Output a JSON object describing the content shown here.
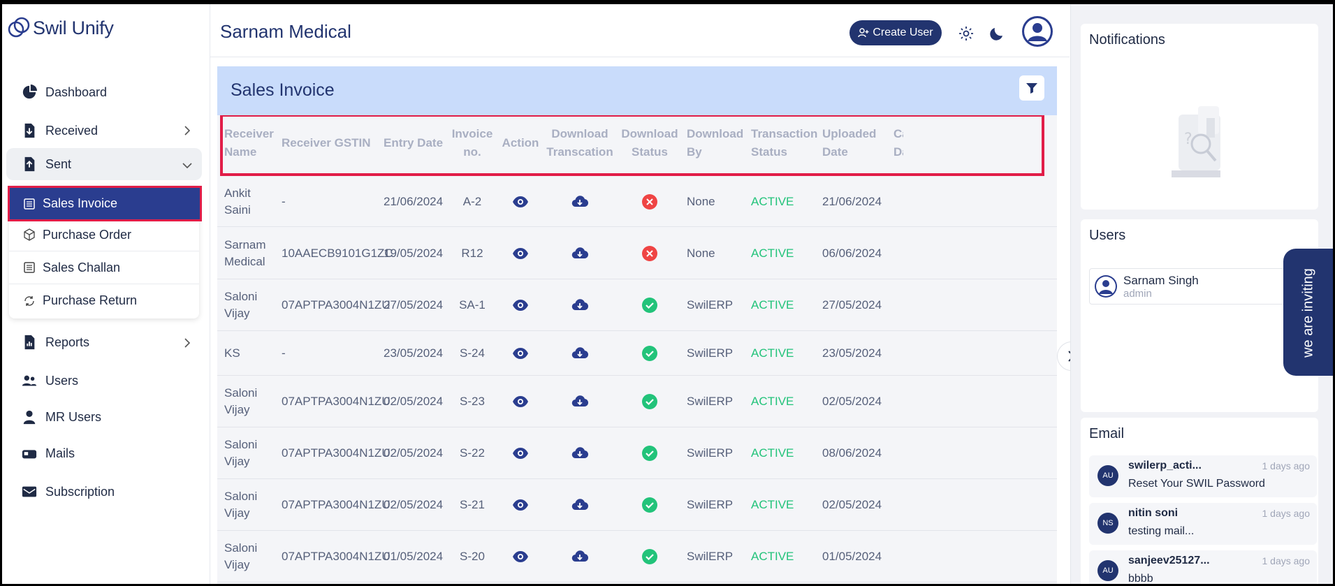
{
  "app": {
    "logo_text": "Swil Unify"
  },
  "sidebar": {
    "items": [
      {
        "label": "Dashboard"
      },
      {
        "label": "Received"
      },
      {
        "label": "Sent"
      },
      {
        "label": "Reports"
      },
      {
        "label": "Users"
      },
      {
        "label": "MR Users"
      },
      {
        "label": "Mails"
      },
      {
        "label": "Subscription"
      }
    ],
    "sent_submenu": [
      {
        "label": "Sales Invoice"
      },
      {
        "label": "Purchase Order"
      },
      {
        "label": "Sales Challan"
      },
      {
        "label": "Purchase Return"
      }
    ]
  },
  "header": {
    "title": "Sarnam Medical",
    "create_user": "Create User"
  },
  "card": {
    "title": "Sales Invoice"
  },
  "table": {
    "columns": [
      "Receiver Name",
      "Receiver GSTIN",
      "Entry Date",
      "Invoice no.",
      "Action",
      "Download Transcation",
      "Download Status",
      "Download By",
      "Transaction Status",
      "Uploaded Date",
      "Ca Da"
    ],
    "rows": [
      {
        "name": "Ankit Saini",
        "gstin": "-",
        "entry": "21/06/2024",
        "inv": "A-2",
        "dl_status": "failed",
        "by": "None",
        "status": "ACTIVE",
        "uploaded": "21/06/2024"
      },
      {
        "name": "Sarnam Medical",
        "gstin": "10AAECB9101G1ZC",
        "entry": "19/05/2024",
        "inv": "R12",
        "dl_status": "failed",
        "by": "None",
        "status": "ACTIVE",
        "uploaded": "06/06/2024"
      },
      {
        "name": "Saloni Vijay",
        "gstin": "07APTPA3004N1ZU",
        "entry": "27/05/2024",
        "inv": "SA-1",
        "dl_status": "success",
        "by": "SwilERP",
        "status": "ACTIVE",
        "uploaded": "27/05/2024"
      },
      {
        "name": "KS",
        "gstin": "-",
        "entry": "23/05/2024",
        "inv": "S-24",
        "dl_status": "success",
        "by": "SwilERP",
        "status": "ACTIVE",
        "uploaded": "23/05/2024"
      },
      {
        "name": "Saloni Vijay",
        "gstin": "07APTPA3004N1ZU",
        "entry": "02/05/2024",
        "inv": "S-23",
        "dl_status": "success",
        "by": "SwilERP",
        "status": "ACTIVE",
        "uploaded": "02/05/2024"
      },
      {
        "name": "Saloni Vijay",
        "gstin": "07APTPA3004N1ZU",
        "entry": "02/05/2024",
        "inv": "S-22",
        "dl_status": "success",
        "by": "SwilERP",
        "status": "ACTIVE",
        "uploaded": "08/06/2024"
      },
      {
        "name": "Saloni Vijay",
        "gstin": "07APTPA3004N1ZU",
        "entry": "02/05/2024",
        "inv": "S-21",
        "dl_status": "success",
        "by": "SwilERP",
        "status": "ACTIVE",
        "uploaded": "02/05/2024"
      },
      {
        "name": "Saloni Vijay",
        "gstin": "07APTPA3004N1ZU",
        "entry": "01/05/2024",
        "inv": "S-20",
        "dl_status": "success",
        "by": "SwilERP",
        "status": "ACTIVE",
        "uploaded": "01/05/2024"
      }
    ]
  },
  "right": {
    "notifications_title": "Notifications",
    "users_title": "Users",
    "users": [
      {
        "name": "Sarnam Singh",
        "role": "admin"
      }
    ],
    "invite_text": "we are inviting",
    "email_title": "Email",
    "emails": [
      {
        "initials": "AU",
        "from": "swilerp_acti...",
        "time": "1 days ago",
        "subject": "Reset Your SWIL Password"
      },
      {
        "initials": "NS",
        "from": "nitin soni",
        "time": "1 days ago",
        "subject": "testing mail..."
      },
      {
        "initials": "AU",
        "from": "sanjeev25127...",
        "time": "1 days ago",
        "subject": "bbbb"
      }
    ]
  },
  "colors": {
    "brand": "#22346f",
    "active": "#2a3d8f",
    "highlight": "#e11d48",
    "success": "#22c37a",
    "error": "#ef4444",
    "header_bg": "#c9dcfb"
  }
}
